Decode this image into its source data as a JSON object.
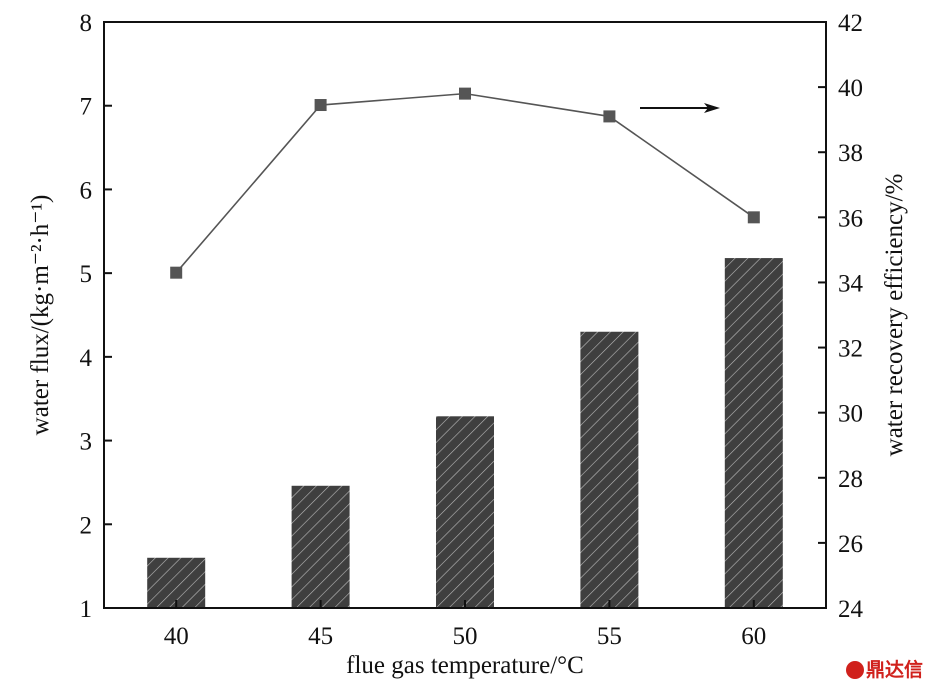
{
  "chart_data": {
    "type": "bar+line",
    "title": "",
    "xlabel": "flue gas temperature/°C",
    "ylabel": "water flux/(kg·m⁻²·h⁻¹)",
    "ylabel_right": "water recovery efficiency/%",
    "categories": [
      "40",
      "45",
      "50",
      "55",
      "60"
    ],
    "x": [
      40,
      45,
      50,
      55,
      60
    ],
    "xlim": [
      37.5,
      62.5
    ],
    "ylim": [
      1,
      8
    ],
    "ylim_right": [
      24,
      42
    ],
    "yticks": [
      1,
      2,
      3,
      4,
      5,
      6,
      7,
      8
    ],
    "yticks_right": [
      24,
      26,
      28,
      30,
      32,
      34,
      36,
      38,
      40,
      42
    ],
    "grid": false,
    "series": [
      {
        "name": "water flux",
        "type": "bar",
        "axis": "left",
        "values": [
          1.6,
          2.46,
          3.29,
          4.3,
          5.18
        ],
        "color": "#444444"
      },
      {
        "name": "water recovery efficiency",
        "type": "line",
        "axis": "right",
        "values": [
          34.3,
          39.45,
          39.8,
          39.1,
          36.0
        ],
        "color": "#555555"
      }
    ],
    "annotations": [
      {
        "type": "arrow",
        "direction": "right",
        "meaning": "line series uses right axis"
      }
    ]
  },
  "watermark": "鼎达信"
}
